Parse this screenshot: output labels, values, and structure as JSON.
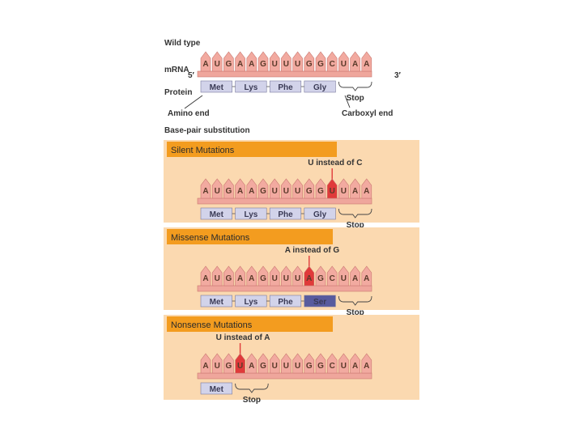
{
  "wild_type": {
    "title": "Wild type",
    "mrna_label": "mRNA",
    "five_prime": "5′",
    "three_prime": "3′",
    "protein_label": "Protein",
    "amino_end": "Amino end",
    "carboxyl_end": "Carboxyl end",
    "bases": [
      "A",
      "U",
      "G",
      "A",
      "A",
      "G",
      "U",
      "U",
      "U",
      "G",
      "G",
      "C",
      "U",
      "A",
      "A"
    ],
    "amino_acids": [
      "Met",
      "Lys",
      "Phe",
      "Gly"
    ],
    "stop": "Stop"
  },
  "substitution_heading": "Base-pair substitution",
  "panels": [
    {
      "banner": "Silent Mutations",
      "note": "U instead of C",
      "mutated_index": 11,
      "bases": [
        "A",
        "U",
        "G",
        "A",
        "A",
        "G",
        "U",
        "U",
        "U",
        "G",
        "G",
        "U",
        "U",
        "A",
        "A"
      ],
      "amino_acids": [
        "Met",
        "Lys",
        "Phe",
        "Gly"
      ],
      "highlight_aa": -1,
      "stop": "Stop"
    },
    {
      "banner": "Missense Mutations",
      "note": "A instead of G",
      "mutated_index": 9,
      "bases": [
        "A",
        "U",
        "G",
        "A",
        "A",
        "G",
        "U",
        "U",
        "U",
        "A",
        "G",
        "C",
        "U",
        "A",
        "A"
      ],
      "amino_acids": [
        "Met",
        "Lys",
        "Phe",
        "Ser"
      ],
      "highlight_aa": 3,
      "stop": "Stop"
    },
    {
      "banner": "Nonsense Mutations",
      "note": "U instead of A",
      "mutated_index": 3,
      "bases": [
        "A",
        "U",
        "G",
        "U",
        "A",
        "G",
        "U",
        "U",
        "U",
        "G",
        "G",
        "C",
        "U",
        "A",
        "A"
      ],
      "amino_acids": [
        "Met"
      ],
      "highlight_aa": -1,
      "stop": "Stop"
    }
  ],
  "colors": {
    "panel_bg": "#fbd9b0",
    "banner": "#f39c1f",
    "tooth": "#f2aaa0",
    "tooth_edge": "#c9776f",
    "strand": "#efa69c",
    "mutant": "#e03a3a",
    "aa_box": "#d2d3ea",
    "aa_highlight": "#585b9e"
  }
}
